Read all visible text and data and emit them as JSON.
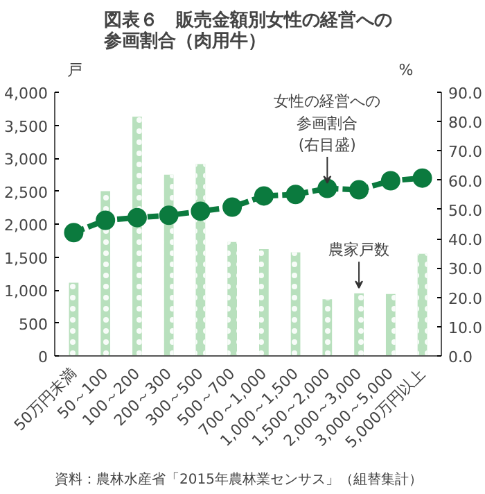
{
  "chart_data": {
    "type": "bar",
    "title": "図表６　販売金額別女性の経営への参画割合（肉用牛）",
    "ylabel": "戸",
    "y2label": "%",
    "categories": [
      "50万円未満",
      "50～100",
      "100～200",
      "200～300",
      "300～500",
      "500～700",
      "700～1,000",
      "1,000～1,500",
      "1,500～2,000",
      "2,000～3,000",
      "3,000～5,000",
      "5,000万円以上"
    ],
    "series": [
      {
        "name": "農家戸数",
        "color": "#b8e0bd",
        "values": [
          1110,
          2500,
          3630,
          2750,
          2910,
          1730,
          1620,
          1570,
          860,
          950,
          940,
          1550
        ]
      },
      {
        "name": "女性の経営への参画割合(右目盛)",
        "type": "line",
        "axis": "y2",
        "color": "#0b7a3e",
        "marker": "circle",
        "line_style": "dashed",
        "values": [
          42.1,
          46.3,
          47.2,
          48.0,
          49.4,
          50.8,
          54.6,
          55.1,
          57.2,
          56.7,
          59.8,
          60.7
        ]
      }
    ],
    "ylim": [
      0,
      4000
    ],
    "yticks": [
      0,
      500,
      {
        "value": 1000,
        "label": "1,000"
      },
      {
        "value": 1500,
        "label": "1,500"
      },
      {
        "value": 2000,
        "label": "2,000"
      },
      {
        "value": 2500,
        "label": "2,500"
      },
      {
        "value": 3000,
        "label": "3,000"
      },
      {
        "value": 3500,
        "label": "3,500"
      },
      {
        "value": 4000,
        "label": "4,000"
      }
    ],
    "y2lim": [
      0,
      90
    ],
    "y2ticks": [
      {
        "value": 0,
        "label": "0.0"
      },
      {
        "value": 10,
        "label": "10.0"
      },
      {
        "value": 20,
        "label": "20.0"
      },
      {
        "value": 30,
        "label": "30.0"
      },
      {
        "value": 40,
        "label": "40.0"
      },
      {
        "value": 50,
        "label": "50.0"
      },
      {
        "value": 60,
        "label": "60.0"
      },
      {
        "value": 70,
        "label": "70.0"
      },
      {
        "value": 80,
        "label": "80.0"
      },
      {
        "value": 90,
        "label": "90.0"
      }
    ],
    "annotations": [
      "資料：農林水産省「2015年農林業センサス」（組替集計）"
    ],
    "grid": false,
    "legend": false
  }
}
